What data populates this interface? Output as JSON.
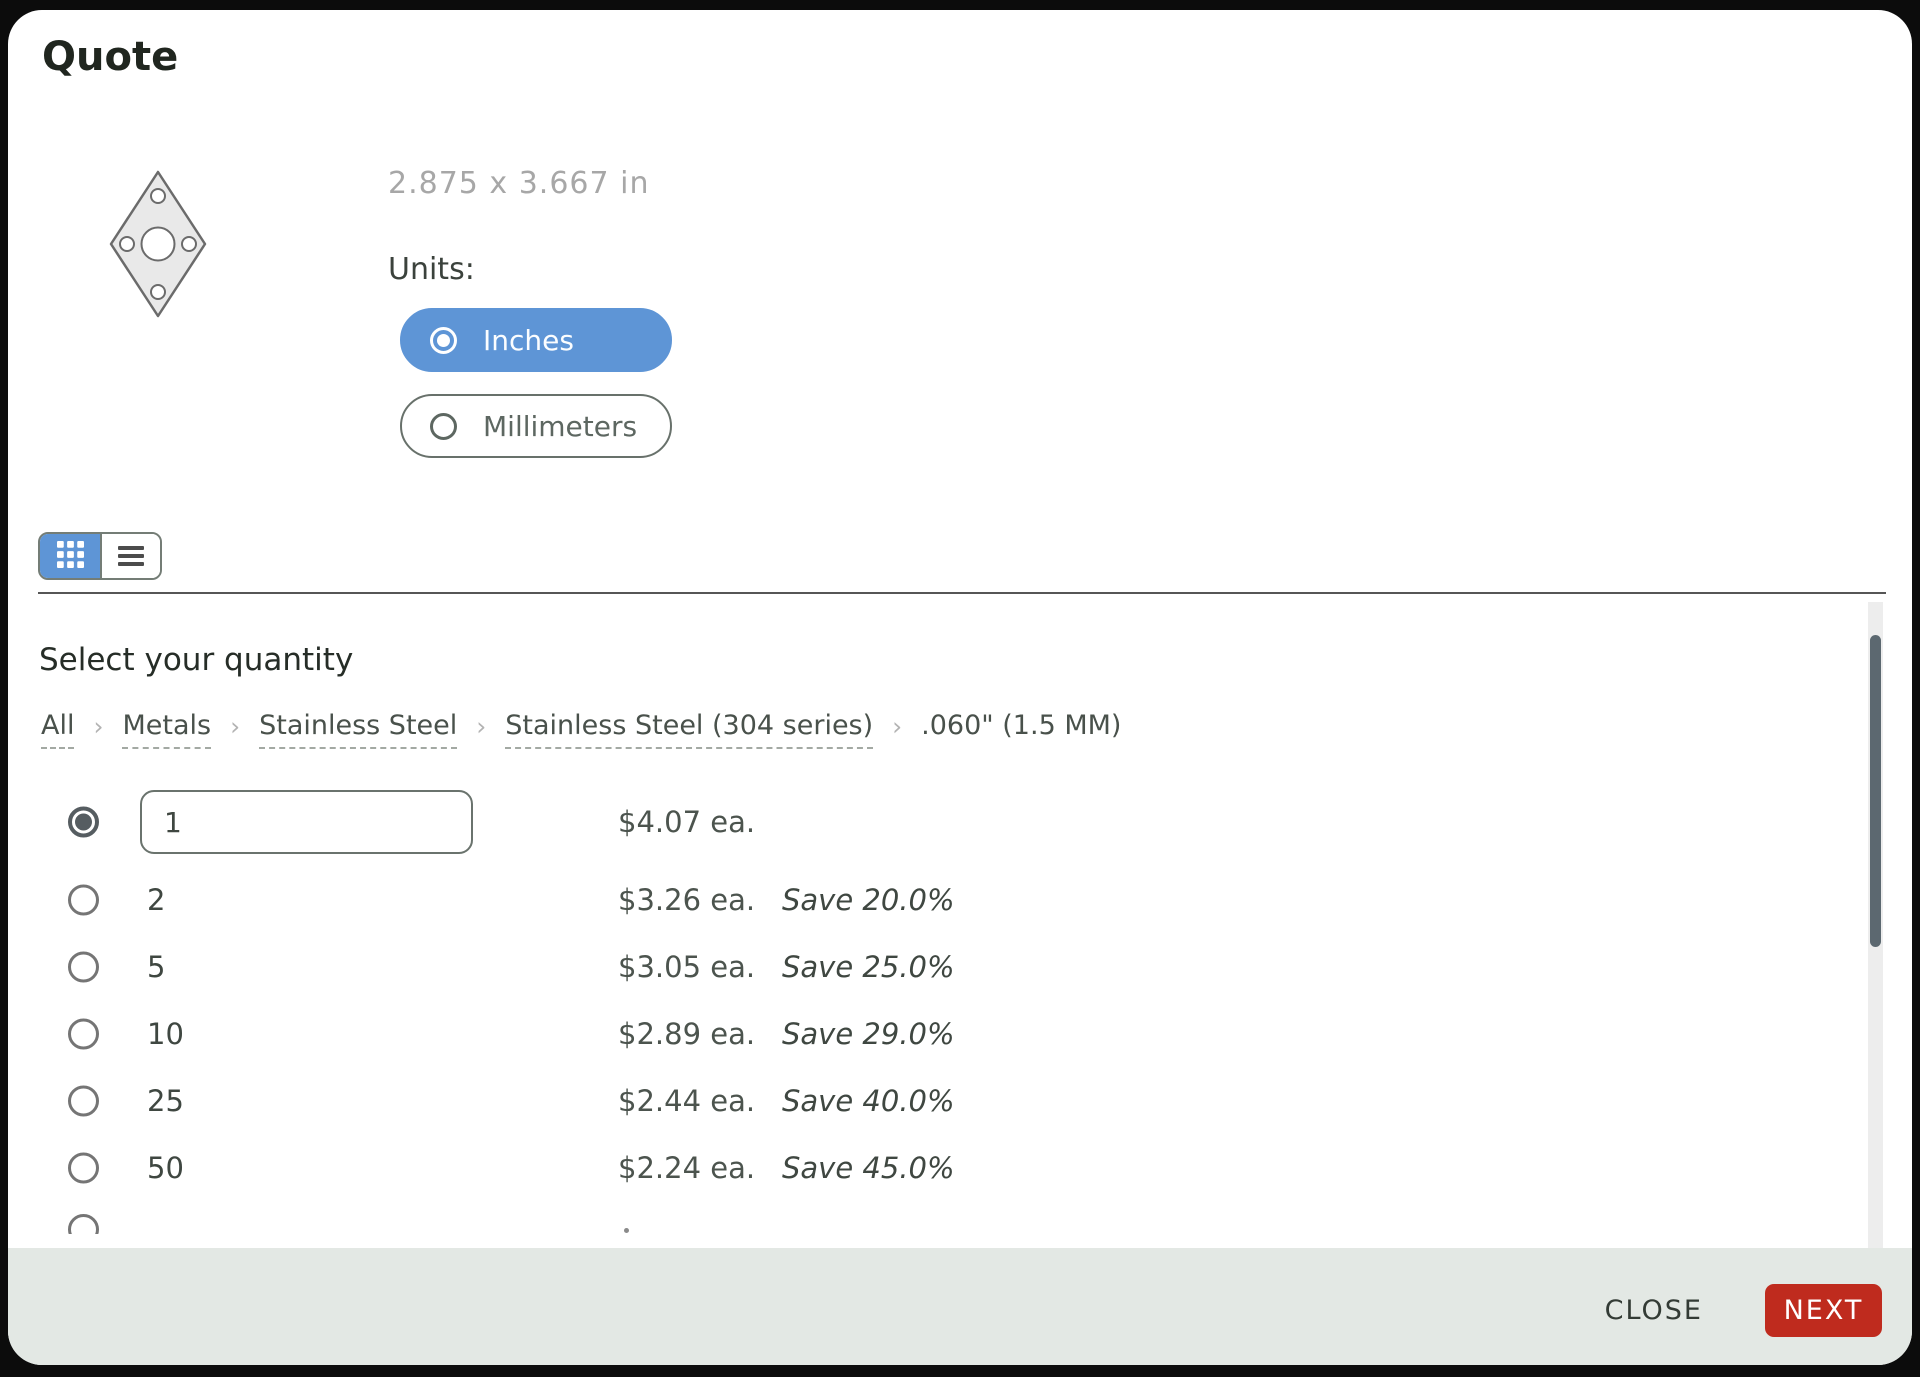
{
  "dialog": {
    "title": "Quote",
    "part": {
      "preview_icon": "diamond-gasket-outline",
      "dimensions": "2.875 x 3.667 in",
      "units_label": "Units:",
      "unit_options": [
        {
          "label": "Inches",
          "selected": true
        },
        {
          "label": "Millimeters",
          "selected": false
        }
      ]
    },
    "view_toggle": {
      "active": "grid",
      "icons": {
        "grid": "grid-view-icon",
        "list": "list-view-icon"
      }
    },
    "quantity_section": {
      "heading": "Select your quantity",
      "breadcrumb": {
        "separator": "›",
        "items": [
          {
            "label": "All",
            "link": true
          },
          {
            "label": "Metals",
            "link": true
          },
          {
            "label": "Stainless Steel",
            "link": true
          },
          {
            "label": "Stainless Steel (304 series)",
            "link": true
          },
          {
            "label": ".060\" (1.5 MM)",
            "link": false
          }
        ]
      },
      "rows": [
        {
          "quantity": "1",
          "price": "$4.07 ea.",
          "save": "",
          "selected": true,
          "editable": true
        },
        {
          "quantity": "2",
          "price": "$3.26 ea.",
          "save": "Save 20.0%",
          "selected": false,
          "editable": false
        },
        {
          "quantity": "5",
          "price": "$3.05 ea.",
          "save": "Save 25.0%",
          "selected": false,
          "editable": false
        },
        {
          "quantity": "10",
          "price": "$2.89 ea.",
          "save": "Save 29.0%",
          "selected": false,
          "editable": false
        },
        {
          "quantity": "25",
          "price": "$2.44 ea.",
          "save": "Save 40.0%",
          "selected": false,
          "editable": false
        },
        {
          "quantity": "50",
          "price": "$2.24 ea.",
          "save": "Save 45.0%",
          "selected": false,
          "editable": false
        }
      ]
    },
    "footer": {
      "close_label": "CLOSE",
      "next_label": "NEXT"
    },
    "colors": {
      "accent_blue": "#5e95d6",
      "next_red": "#bf2b1e",
      "footer_bg": "#e3e8e4",
      "dim_text": "#a7a7a7",
      "scrollbar_thumb": "#5c6870"
    }
  }
}
